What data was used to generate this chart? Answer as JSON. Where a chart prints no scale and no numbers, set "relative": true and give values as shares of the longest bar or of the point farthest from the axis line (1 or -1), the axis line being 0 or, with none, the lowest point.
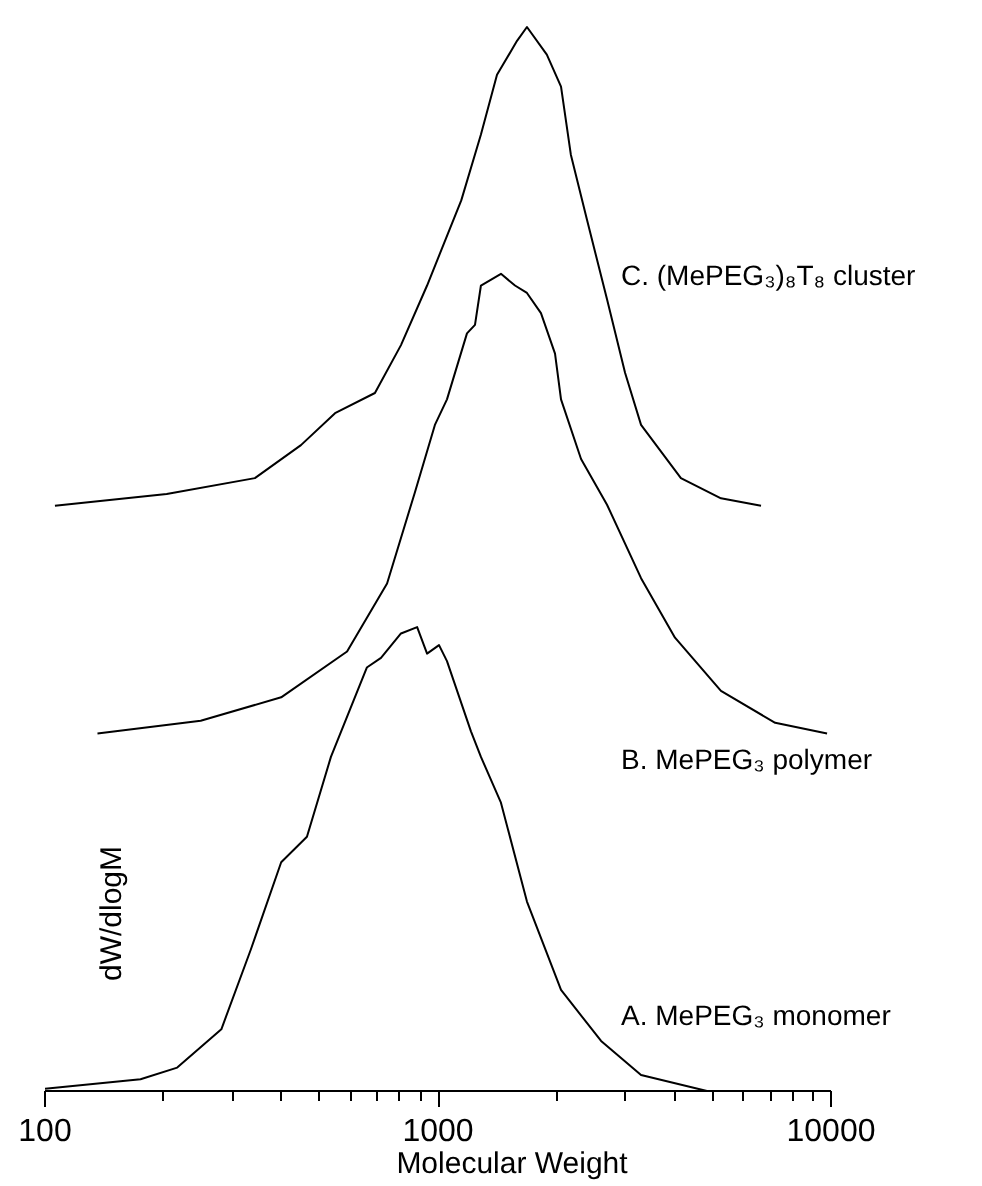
{
  "chart_data": {
    "type": "line",
    "relative": true,
    "log": "x",
    "xlabel": "Molecular Weight",
    "ylabel": "dW/dlogM",
    "xlim": [
      100,
      10000
    ],
    "xticks": [
      100,
      1000,
      10000
    ],
    "grid": false,
    "legend": false,
    "marker": "none",
    "line_style": "solid",
    "series": [
      {
        "name": "C. (MePEG₃)₈T₈ cluster",
        "color": "#000000",
        "x": [
          106,
          204,
          342,
          448,
          547,
          691,
          805,
          938,
          1146,
          1286,
          1413,
          1589,
          1684,
          1892,
          2056,
          2178,
          2393,
          2692,
          2992,
          3286,
          4150,
          5248,
          6637
        ],
        "values": [
          0.55,
          0.561,
          0.576,
          0.607,
          0.637,
          0.656,
          0.701,
          0.757,
          0.837,
          0.899,
          0.955,
          0.987,
          1.0,
          0.974,
          0.944,
          0.88,
          0.819,
          0.744,
          0.675,
          0.626,
          0.576,
          0.557,
          0.55
        ]
      },
      {
        "name": "B. MePEG₃ polymer",
        "color": "#000000",
        "x": [
          136,
          249,
          399,
          587,
          742,
          874,
          982,
          1054,
          1185,
          1242,
          1286,
          1446,
          1570,
          1684,
          1828,
          1985,
          2056,
          2312,
          2692,
          3286,
          4009,
          5248,
          7211,
          9772
        ],
        "values": [
          0.336,
          0.348,
          0.37,
          0.413,
          0.477,
          0.563,
          0.626,
          0.65,
          0.712,
          0.72,
          0.757,
          0.768,
          0.757,
          0.75,
          0.731,
          0.693,
          0.65,
          0.594,
          0.551,
          0.482,
          0.426,
          0.376,
          0.346,
          0.336
        ]
      },
      {
        "name": "A. MePEG₃ monomer",
        "color": "#000000",
        "x": [
          100,
          175,
          217,
          281,
          334,
          399,
          464,
          534,
          659,
          716,
          805,
          885,
          938,
          1006,
          1054,
          1213,
          1286,
          1446,
          1684,
          2056,
          2600,
          3286,
          4835
        ],
        "values": [
          0.002,
          0.011,
          0.022,
          0.058,
          0.133,
          0.215,
          0.239,
          0.314,
          0.398,
          0.407,
          0.43,
          0.436,
          0.411,
          0.419,
          0.404,
          0.338,
          0.314,
          0.271,
          0.178,
          0.095,
          0.047,
          0.015,
          0.0
        ]
      }
    ]
  }
}
